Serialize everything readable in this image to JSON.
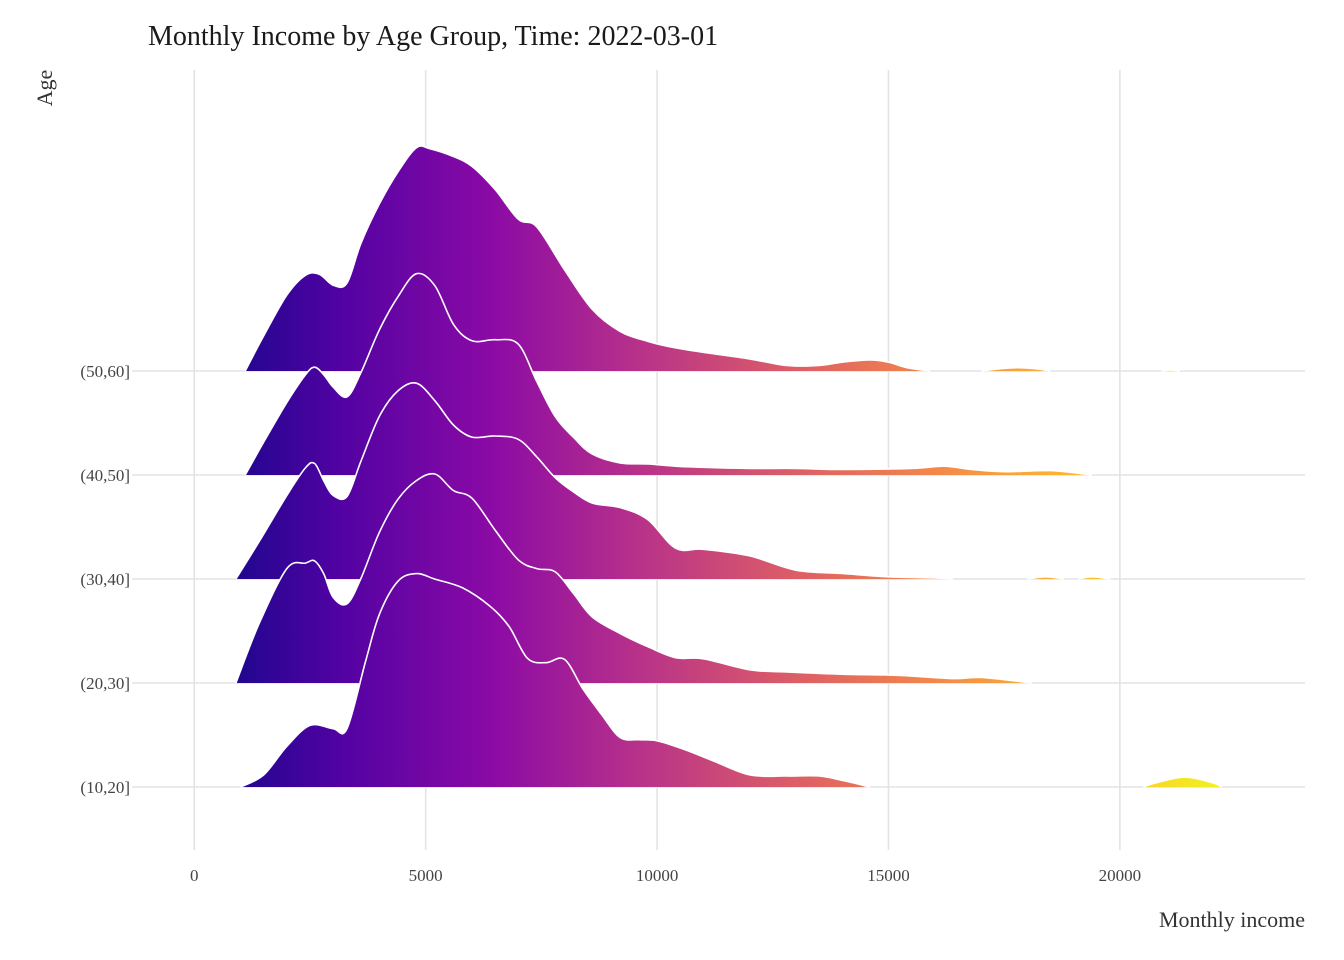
{
  "chart_data": {
    "type": "ridgeline",
    "title": "Monthly Income by Age Group, Time: 2022-03-01",
    "xlabel": "Monthly income",
    "ylabel": "Age",
    "xlim": [
      -1000,
      24000
    ],
    "x_ticks": [
      0,
      5000,
      10000,
      15000,
      20000
    ],
    "x_tick_labels": [
      "0",
      "5000",
      "10000",
      "15000",
      "20000"
    ],
    "categories": [
      "(10,20]",
      "(20,30]",
      "(30,40]",
      "(40,50]",
      "(50,60]"
    ],
    "color_scale": {
      "name": "plasma",
      "stops": [
        "#0d0887",
        "#5302a3",
        "#8b0aa5",
        "#b83289",
        "#db5c68",
        "#f48849",
        "#febd2a",
        "#f0f921"
      ]
    },
    "grid": true,
    "legend": "none",
    "series": [
      {
        "group": "(10,20]",
        "x": [
          1000,
          1500,
          2000,
          2500,
          3000,
          3300,
          3700,
          4000,
          4400,
          4800,
          5200,
          5800,
          6400,
          6800,
          7200,
          7600,
          8000,
          8400,
          8800,
          9200,
          9600,
          10000,
          10600,
          11200,
          12000,
          12800,
          13500,
          14000,
          14600
        ],
        "density": [
          0.0,
          0.11,
          0.37,
          0.56,
          0.53,
          0.53,
          1.14,
          1.57,
          1.87,
          1.94,
          1.89,
          1.81,
          1.64,
          1.46,
          1.17,
          1.13,
          1.16,
          0.89,
          0.66,
          0.45,
          0.43,
          0.42,
          0.34,
          0.24,
          0.11,
          0.1,
          0.1,
          0.06,
          0.0
        ],
        "x2": [
          20500,
          20800,
          21400,
          22000,
          22200
        ],
        "density2": [
          0.0,
          0.04,
          0.09,
          0.04,
          0.0
        ]
      },
      {
        "group": "(20,30]",
        "x": [
          900,
          1400,
          2000,
          2400,
          2600,
          2800,
          3000,
          3300,
          3600,
          4000,
          4400,
          4800,
          5200,
          5600,
          6000,
          6500,
          7000,
          7400,
          7800,
          8200,
          8600,
          9200,
          9800,
          10400,
          11000,
          12000,
          12800,
          14000,
          15200,
          16400,
          17000,
          18100
        ],
        "density": [
          0.0,
          0.54,
          1.04,
          1.09,
          1.11,
          0.99,
          0.78,
          0.72,
          0.95,
          1.37,
          1.67,
          1.84,
          1.9,
          1.75,
          1.68,
          1.39,
          1.12,
          1.04,
          1.01,
          0.81,
          0.6,
          0.45,
          0.33,
          0.23,
          0.22,
          0.12,
          0.1,
          0.08,
          0.07,
          0.04,
          0.05,
          0.0
        ]
      },
      {
        "group": "(30,40]",
        "x": [
          900,
          1400,
          2000,
          2400,
          2600,
          2800,
          3000,
          3300,
          3600,
          4000,
          4400,
          4800,
          5200,
          5600,
          6000,
          6500,
          7000,
          7400,
          7800,
          8200,
          8600,
          9200,
          9800,
          10400,
          11000,
          12000,
          13000,
          14000,
          15000,
          16000,
          16400
        ],
        "density": [
          0.0,
          0.34,
          0.76,
          1.01,
          1.05,
          0.89,
          0.76,
          0.75,
          1.07,
          1.48,
          1.71,
          1.78,
          1.62,
          1.4,
          1.29,
          1.3,
          1.27,
          1.11,
          0.92,
          0.79,
          0.69,
          0.65,
          0.54,
          0.28,
          0.27,
          0.21,
          0.08,
          0.05,
          0.02,
          0.01,
          0.0
        ],
        "x2": [
          18000,
          18400,
          18800
        ],
        "density2": [
          0.0,
          0.02,
          0.0
        ],
        "x3": [
          19100,
          19400,
          19800
        ],
        "density3": [
          0.0,
          0.02,
          0.0
        ]
      },
      {
        "group": "(40,50]",
        "x": [
          1100,
          1500,
          2000,
          2400,
          2600,
          2800,
          3000,
          3300,
          3600,
          4000,
          4400,
          4800,
          5200,
          5600,
          6000,
          6500,
          7000,
          7400,
          7800,
          8200,
          8600,
          9200,
          9800,
          10400,
          11000,
          12000,
          13000,
          14000,
          15500,
          16200,
          16800,
          17500,
          18500,
          19400
        ],
        "density": [
          0.0,
          0.3,
          0.66,
          0.91,
          0.98,
          0.91,
          0.8,
          0.71,
          0.93,
          1.32,
          1.62,
          1.83,
          1.72,
          1.37,
          1.22,
          1.23,
          1.19,
          0.85,
          0.53,
          0.34,
          0.19,
          0.11,
          0.1,
          0.08,
          0.07,
          0.06,
          0.06,
          0.05,
          0.06,
          0.08,
          0.05,
          0.03,
          0.04,
          0.0
        ]
      },
      {
        "group": "(50,60]",
        "x": [
          1100,
          1500,
          2000,
          2400,
          2700,
          3000,
          3300,
          3600,
          4000,
          4400,
          4800,
          5100,
          5600,
          6000,
          6500,
          7000,
          7400,
          8000,
          8600,
          9200,
          9800,
          10400,
          11000,
          12000,
          12800,
          13500,
          14000,
          14600,
          15000,
          15400,
          15900
        ],
        "density": [
          0.0,
          0.32,
          0.69,
          0.87,
          0.88,
          0.78,
          0.8,
          1.16,
          1.52,
          1.81,
          2.03,
          2.02,
          1.95,
          1.86,
          1.65,
          1.38,
          1.31,
          0.92,
          0.56,
          0.36,
          0.27,
          0.21,
          0.17,
          0.11,
          0.05,
          0.05,
          0.08,
          0.1,
          0.08,
          0.03,
          0.0
        ],
        "x2": [
          17000,
          17400,
          17800,
          18200,
          18500
        ],
        "density2": [
          0.0,
          0.02,
          0.03,
          0.02,
          0.0
        ],
        "x3": [
          20900,
          21100,
          21300
        ],
        "density3": [
          0.0,
          0.01,
          0.0
        ]
      }
    ]
  }
}
